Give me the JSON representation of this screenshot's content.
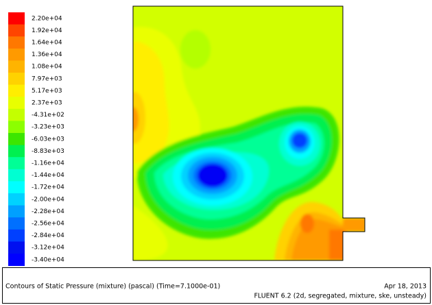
{
  "legend": {
    "levels": [
      {
        "label": "2.20e+04",
        "color": "#ff0000"
      },
      {
        "label": "1.92e+04",
        "color": "#ff4500"
      },
      {
        "label": "1.64e+04",
        "color": "#ff7800"
      },
      {
        "label": "1.36e+04",
        "color": "#ff9a00"
      },
      {
        "label": "1.08e+04",
        "color": "#ffb400"
      },
      {
        "label": "7.97e+03",
        "color": "#ffd200"
      },
      {
        "label": "5.17e+03",
        "color": "#ffee00"
      },
      {
        "label": "2.37e+03",
        "color": "#e8ff00"
      },
      {
        "label": "-4.31e+02",
        "color": "#c4ff00"
      },
      {
        "label": "-3.23e+03",
        "color": "#8cff00"
      },
      {
        "label": "-6.03e+03",
        "color": "#3ce600"
      },
      {
        "label": "-8.83e+03",
        "color": "#00f050"
      },
      {
        "label": "-1.16e+04",
        "color": "#00ff96"
      },
      {
        "label": "-1.44e+04",
        "color": "#00ffd2"
      },
      {
        "label": "-1.72e+04",
        "color": "#00ffff"
      },
      {
        "label": "-2.00e+04",
        "color": "#00d2ff"
      },
      {
        "label": "-2.28e+04",
        "color": "#00a0ff"
      },
      {
        "label": "-2.56e+04",
        "color": "#0070ff"
      },
      {
        "label": "-2.84e+04",
        "color": "#0040ff"
      },
      {
        "label": "-3.12e+04",
        "color": "#0010f0"
      },
      {
        "label": "-3.40e+04",
        "color": "#0000ff"
      }
    ]
  },
  "caption": {
    "title": "Contours of Static Pressure (mixture) (pascal)  (Time=7.1000e-01)",
    "date": "Apr 18, 2013",
    "solver": "FLUENT 6.2 (2d, segregated, mixture, ske, unsteady)"
  }
}
